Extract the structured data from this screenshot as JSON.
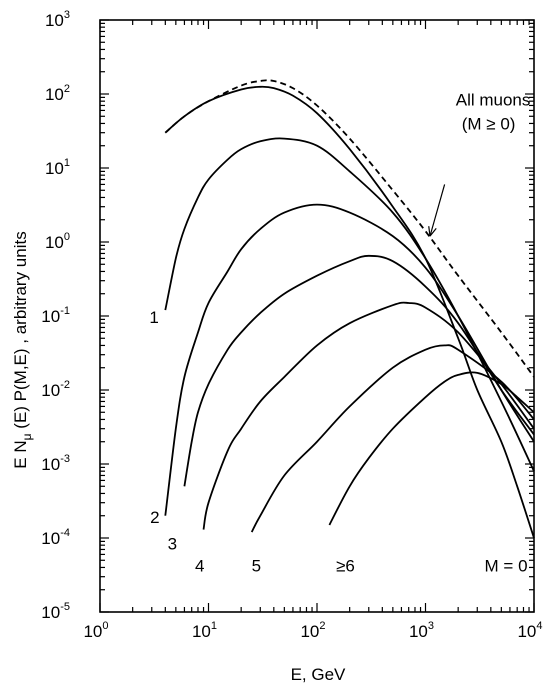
{
  "chart_data": {
    "type": "line",
    "title": "",
    "xlabel": "E, GeV",
    "ylabel_parts": {
      "pre": "E N",
      "sub": "μ",
      "post": " (E) P(M,E) ,  arbitrary units"
    },
    "xscale": "log",
    "yscale": "log",
    "xlim": [
      1,
      10000
    ],
    "ylim": [
      1e-05,
      1000
    ],
    "x_ticks": [
      {
        "value": 1,
        "base": "10",
        "exp": "0"
      },
      {
        "value": 10,
        "base": "10",
        "exp": "1"
      },
      {
        "value": 100,
        "base": "10",
        "exp": "2"
      },
      {
        "value": 1000,
        "base": "10",
        "exp": "3"
      },
      {
        "value": 10000,
        "base": "10",
        "exp": "4"
      }
    ],
    "y_ticks": [
      {
        "value": 1e-05,
        "base": "10",
        "exp": "-5"
      },
      {
        "value": 0.0001,
        "base": "10",
        "exp": "-4"
      },
      {
        "value": 0.001,
        "base": "10",
        "exp": "-3"
      },
      {
        "value": 0.01,
        "base": "10",
        "exp": "-2"
      },
      {
        "value": 0.1,
        "base": "10",
        "exp": "-1"
      },
      {
        "value": 1,
        "base": "10",
        "exp": "0"
      },
      {
        "value": 10,
        "base": "10",
        "exp": "1"
      },
      {
        "value": 100,
        "base": "10",
        "exp": "2"
      },
      {
        "value": 1000,
        "base": "10",
        "exp": "3"
      }
    ],
    "grid": false,
    "series": [
      {
        "label": "All muons (M ≥ 0)",
        "style": "dashed",
        "x": [
          4,
          6,
          10,
          20,
          30,
          40,
          60,
          100,
          200,
          500,
          1000,
          2000,
          5000,
          10000
        ],
        "y": [
          30,
          50,
          80,
          130,
          150,
          150,
          120,
          70,
          25,
          5,
          1.4,
          0.35,
          0.06,
          0.015
        ]
      },
      {
        "label": "M = 0",
        "style": "solid",
        "x": [
          4,
          6,
          10,
          20,
          30,
          40,
          60,
          100,
          200,
          500,
          1000,
          2000,
          3000,
          5000,
          7000,
          10000
        ],
        "y": [
          30,
          50,
          80,
          115,
          125,
          120,
          95,
          55,
          18,
          3,
          0.6,
          0.05,
          0.01,
          0.002,
          0.0005,
          0.0001
        ]
      },
      {
        "label": "1",
        "style": "solid",
        "x": [
          4,
          5,
          6,
          8,
          10,
          15,
          20,
          30,
          50,
          100,
          200,
          500,
          1000,
          2000,
          5000,
          10000
        ],
        "y": [
          0.12,
          0.6,
          1.5,
          4,
          7,
          13,
          18,
          23,
          25,
          20,
          9,
          2.5,
          0.6,
          0.1,
          0.007,
          0.0008
        ]
      },
      {
        "label": "2",
        "style": "solid",
        "x": [
          4,
          5,
          6,
          8,
          10,
          15,
          20,
          30,
          50,
          100,
          200,
          500,
          1000,
          2000,
          5000,
          10000
        ],
        "y": [
          0.0002,
          0.003,
          0.015,
          0.06,
          0.15,
          0.4,
          0.8,
          1.5,
          2.5,
          3.2,
          2.5,
          1.2,
          0.45,
          0.1,
          0.01,
          0.002
        ]
      },
      {
        "label": "3",
        "style": "solid",
        "x": [
          6,
          7,
          8,
          10,
          15,
          20,
          30,
          50,
          100,
          200,
          300,
          500,
          1000,
          2000,
          5000,
          10000
        ],
        "y": [
          0.0005,
          0.002,
          0.005,
          0.012,
          0.035,
          0.06,
          0.11,
          0.2,
          0.35,
          0.55,
          0.65,
          0.55,
          0.25,
          0.08,
          0.01,
          0.0025
        ]
      },
      {
        "label": "4",
        "style": "solid",
        "x": [
          9,
          10,
          15,
          20,
          30,
          50,
          100,
          200,
          500,
          700,
          1000,
          2000,
          5000,
          10000
        ],
        "y": [
          0.00013,
          0.0003,
          0.0015,
          0.003,
          0.007,
          0.015,
          0.04,
          0.08,
          0.14,
          0.15,
          0.13,
          0.06,
          0.012,
          0.003
        ]
      },
      {
        "label": "5",
        "style": "solid",
        "x": [
          25,
          30,
          50,
          100,
          200,
          500,
          1000,
          1500,
          2000,
          5000,
          10000
        ],
        "y": [
          0.00012,
          0.0002,
          0.0007,
          0.002,
          0.006,
          0.02,
          0.035,
          0.04,
          0.035,
          0.013,
          0.004
        ]
      },
      {
        "label": "≥6",
        "style": "solid",
        "x": [
          130,
          200,
          300,
          500,
          1000,
          1500,
          2000,
          3000,
          5000,
          7000,
          10000
        ],
        "y": [
          0.00015,
          0.0005,
          0.0012,
          0.003,
          0.008,
          0.013,
          0.016,
          0.017,
          0.012,
          0.008,
          0.005
        ]
      }
    ],
    "curve_labels": [
      {
        "text": "1",
        "x": 2.85,
        "y": 0.08
      },
      {
        "text": "2",
        "x": 2.9,
        "y": 0.00016
      },
      {
        "text": "3",
        "x": 4.2,
        "y": 7e-05
      },
      {
        "text": "4",
        "x": 7.5,
        "y": 3.5e-05
      },
      {
        "text": "5",
        "x": 25,
        "y": 3.5e-05
      },
      {
        "text": "≥6",
        "x": 150,
        "y": 3.5e-05
      },
      {
        "text": "M = 0",
        "x": 3500,
        "y": 3.5e-05
      }
    ],
    "annotation": {
      "lines": [
        "All muons",
        "(M ≥ 0)"
      ],
      "text_x": 1900,
      "text_y": 70,
      "arrow_from": [
        1500,
        6
      ],
      "arrow_to": [
        1100,
        1.2
      ]
    }
  }
}
